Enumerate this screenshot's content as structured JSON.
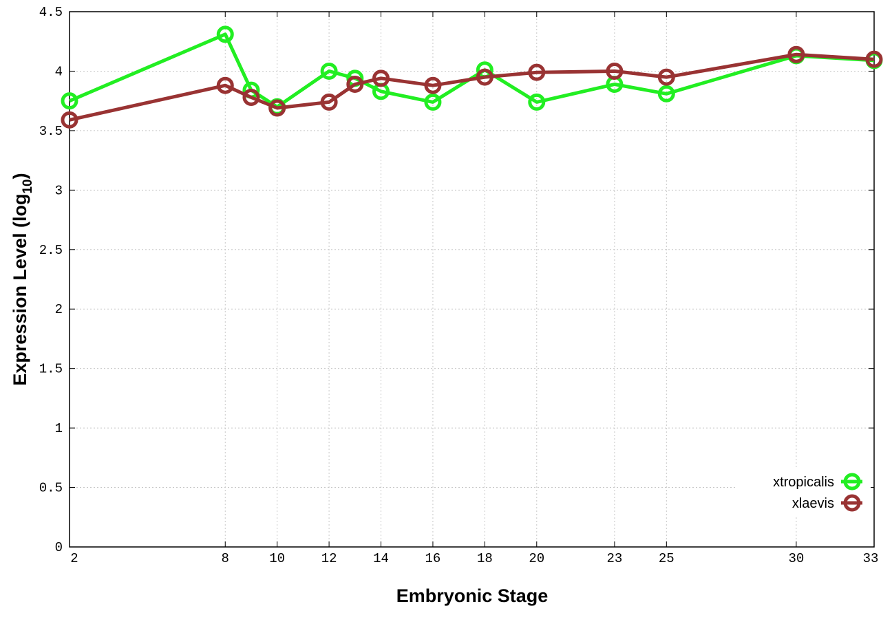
{
  "chart_data": {
    "type": "line",
    "xlabel": "Embryonic Stage",
    "ylabel": "Expression Level (log",
    "ylabel_sub": "10",
    "ylabel_close": ")",
    "x": [
      2,
      8,
      9,
      10,
      12,
      13,
      14,
      16,
      18,
      20,
      23,
      25,
      30,
      33
    ],
    "x_ticks": [
      2,
      8,
      10,
      12,
      14,
      16,
      18,
      20,
      23,
      25,
      30,
      33
    ],
    "y_ticks": [
      "0",
      "0.5",
      "1",
      "1.5",
      "2",
      "2.5",
      "3",
      "3.5",
      "4",
      "4.5"
    ],
    "xlim": [
      2,
      33
    ],
    "ylim": [
      0,
      4.5
    ],
    "grid": true,
    "legend_position": "bottom-right",
    "series": [
      {
        "name": "xtropicalis",
        "color": "#22ee22",
        "values": [
          3.75,
          4.31,
          3.84,
          3.7,
          4.0,
          3.94,
          3.83,
          3.74,
          4.01,
          3.74,
          3.89,
          3.81,
          4.13,
          4.09
        ]
      },
      {
        "name": "xlaevis",
        "color": "#993333",
        "values": [
          3.59,
          3.88,
          3.78,
          3.69,
          3.74,
          3.89,
          3.94,
          3.88,
          3.95,
          3.99,
          4.0,
          3.95,
          4.14,
          4.1
        ]
      }
    ]
  }
}
